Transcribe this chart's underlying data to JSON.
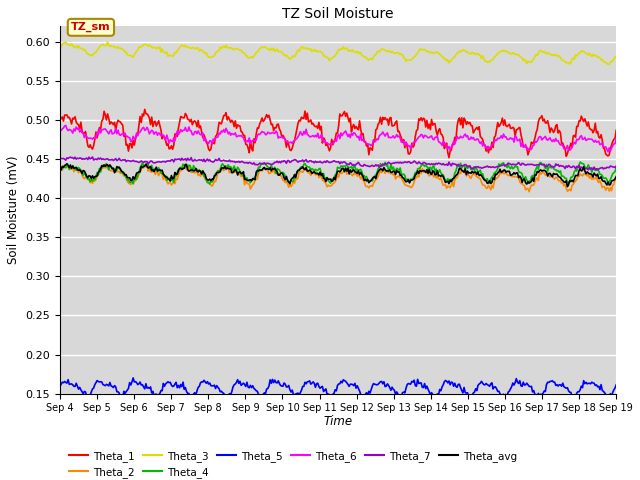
{
  "title": "TZ Soil Moisture",
  "xlabel": "Time",
  "ylabel": "Soil Moisture (mV)",
  "ylim": [
    0.15,
    0.62
  ],
  "yticks": [
    0.15,
    0.2,
    0.25,
    0.3,
    0.35,
    0.4,
    0.45,
    0.5,
    0.55,
    0.6
  ],
  "date_labels": [
    "Sep 4",
    "Sep 5",
    "Sep 6",
    "Sep 7",
    "Sep 8",
    "Sep 9",
    "Sep 10",
    "Sep 11",
    "Sep 12",
    "Sep 13",
    "Sep 14",
    "Sep 15",
    "Sep 16",
    "Sep 17",
    "Sep 18",
    "Sep 19"
  ],
  "n_points": 480,
  "series_order": [
    "Theta_1",
    "Theta_2",
    "Theta_3",
    "Theta_4",
    "Theta_5",
    "Theta_6",
    "Theta_7",
    "Theta_avg"
  ],
  "series": {
    "Theta_1": {
      "color": "#ff0000",
      "base": 0.49,
      "amp": 0.018,
      "freq": 14,
      "trend": -0.008,
      "noise": 0.004
    },
    "Theta_2": {
      "color": "#ff8800",
      "base": 0.432,
      "amp": 0.009,
      "freq": 14,
      "trend": -0.01,
      "noise": 0.002
    },
    "Theta_3": {
      "color": "#dddd00",
      "base": 0.592,
      "amp": 0.006,
      "freq": 14,
      "trend": -0.012,
      "noise": 0.001
    },
    "Theta_4": {
      "color": "#00bb00",
      "base": 0.433,
      "amp": 0.009,
      "freq": 14,
      "trend": 0.002,
      "noise": 0.002
    },
    "Theta_5": {
      "color": "#0000ff",
      "base": 0.158,
      "amp": 0.008,
      "freq": 16,
      "trend": -0.001,
      "noise": 0.002
    },
    "Theta_6": {
      "color": "#ff00ff",
      "base": 0.484,
      "amp": 0.006,
      "freq": 14,
      "trend": -0.014,
      "noise": 0.002
    },
    "Theta_7": {
      "color": "#9900cc",
      "base": 0.45,
      "amp": 0.002,
      "freq": 5,
      "trend": -0.01,
      "noise": 0.001
    },
    "Theta_avg": {
      "color": "#000000",
      "base": 0.435,
      "amp": 0.007,
      "freq": 14,
      "trend": -0.008,
      "noise": 0.002
    }
  },
  "annotation_text": "TZ_sm",
  "fig_bg_color": "#ffffff",
  "plot_bg_color": "#d8d8d8",
  "grid_color": "#ffffff"
}
